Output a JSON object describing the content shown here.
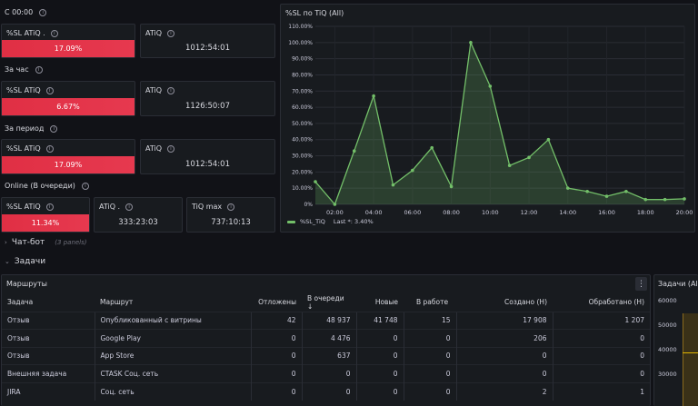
{
  "sections": {
    "since00": "С 00:00",
    "perHour": "За час",
    "perPeriod": "За период",
    "online": "Online (В очереди)"
  },
  "stats": {
    "s1_sl_title": "%SL ATiQ .",
    "s1_sl_value": "17.09%",
    "s1_atiq_title": "ATiQ",
    "s1_atiq_value": "1012:54:01",
    "s2_sl_title": "%SL ATiQ",
    "s2_sl_value": "6.67%",
    "s2_atiq_title": "ATiQ",
    "s2_atiq_value": "1126:50:07",
    "s3_sl_title": "%SL ATiQ",
    "s3_sl_value": "17.09%",
    "s3_atiq_title": "ATiQ",
    "s3_atiq_value": "1012:54:01",
    "s4_sl_title": "%SL ATiQ",
    "s4_sl_value": "11.34%",
    "s4_atiq_title": "ATiQ .",
    "s4_atiq_value": "333:23:03",
    "s4_max_title": "TiQ max",
    "s4_max_value": "737:10:13"
  },
  "chat_row": {
    "title": "Чат-бот",
    "sub": "(3 panels)"
  },
  "tasks_row": {
    "title": "Задачи"
  },
  "routes": {
    "title": "Маршруты",
    "menu_glyph": "⋮",
    "columns": [
      "Задача",
      "Маршрут",
      "Отложены",
      "В очереди ↓",
      "Новые",
      "В работе",
      "Создано (Н)",
      "Обработано (Н)"
    ],
    "rows": [
      [
        "Отзыв",
        "Опубликованный с витрины",
        "42",
        "48 937",
        "41 748",
        "15",
        "17 908",
        "1 207"
      ],
      [
        "Отзыв",
        "Google Play",
        "0",
        "4 476",
        "0",
        "0",
        "206",
        "0"
      ],
      [
        "Отзыв",
        "App Store",
        "0",
        "637",
        "0",
        "0",
        "0",
        "0"
      ],
      [
        "Внешняя задача",
        "CTASK Соц. сеть",
        "0",
        "0",
        "0",
        "0",
        "0",
        "0"
      ],
      [
        "JIRA",
        "Соц. сеть",
        "0",
        "0",
        "0",
        "0",
        "2",
        "1"
      ]
    ]
  },
  "right_panel": {
    "title": "Задачи (All)",
    "ticks": [
      "60000",
      "50000",
      "40000",
      "30000"
    ]
  },
  "chart_data": {
    "type": "area",
    "title": "%SL по TiQ (All)",
    "x": [
      "01:00",
      "02:00",
      "03:00",
      "04:00",
      "05:00",
      "06:00",
      "07:00",
      "08:00",
      "09:00",
      "10:00",
      "11:00",
      "12:00",
      "13:00",
      "14:00",
      "15:00",
      "16:00",
      "17:00",
      "18:00",
      "19:00",
      "20:00"
    ],
    "series": [
      {
        "name": "%SL_TiQ",
        "values": [
          14,
          0,
          33,
          67,
          12,
          21,
          35,
          11,
          100,
          73,
          24,
          29,
          40,
          10,
          8,
          5,
          8,
          3,
          3,
          3.4
        ]
      }
    ],
    "ylim": [
      0,
      110
    ],
    "yticks": [
      "0%",
      "10.00%",
      "20.00%",
      "30.00%",
      "40.00%",
      "50.00%",
      "60.00%",
      "70.00%",
      "80.00%",
      "90.00%",
      "100.00%",
      "110.00%"
    ],
    "xticks": [
      "02:00",
      "04:00",
      "06:00",
      "08:00",
      "10:00",
      "12:00",
      "14:00",
      "16:00",
      "18:00",
      "20:00"
    ],
    "legend_text": "%SL_TiQ",
    "legend_last": "Last *: 3.40%",
    "line_color": "#73bf69",
    "fill_color": "#73bf69",
    "grid": true
  }
}
